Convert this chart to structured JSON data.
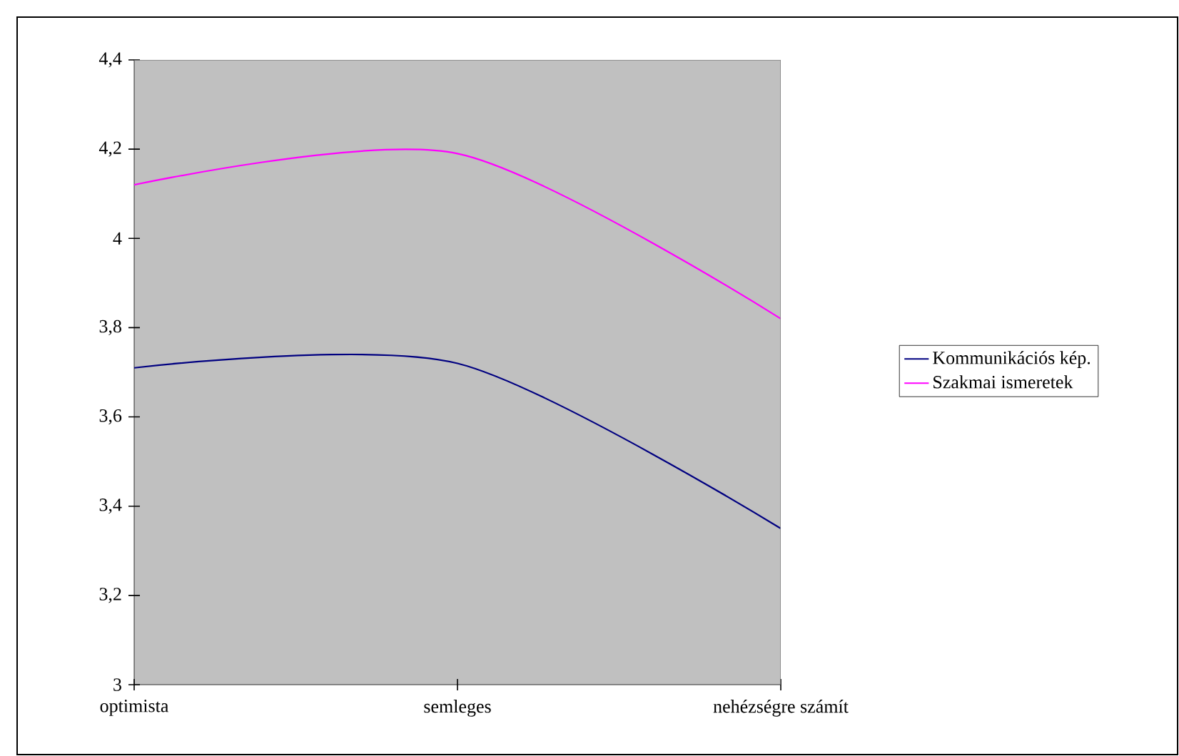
{
  "chart_data": {
    "type": "line",
    "categories": [
      "optimista",
      "semleges",
      "nehézségre számít"
    ],
    "series": [
      {
        "name": "Kommunikációs kép.",
        "color": "#000080",
        "values": [
          3.71,
          3.72,
          3.35
        ]
      },
      {
        "name": "Szakmai ismeretek",
        "color": "#ff00ff",
        "values": [
          4.12,
          4.19,
          3.82
        ]
      }
    ],
    "ylim": [
      3,
      4.4
    ],
    "yticks": [
      3,
      {
        "value": 3.2,
        "label": "3,2"
      },
      {
        "value": 3.4,
        "label": "3,4"
      },
      {
        "value": 3.6,
        "label": "3,6"
      },
      {
        "value": 3.8,
        "label": "3,8"
      },
      4,
      {
        "value": 4.2,
        "label": "4,2"
      },
      {
        "value": 4.4,
        "label": "4,4"
      }
    ],
    "legend": "right",
    "marker": "none",
    "line_style": "solid",
    "grid": false
  }
}
